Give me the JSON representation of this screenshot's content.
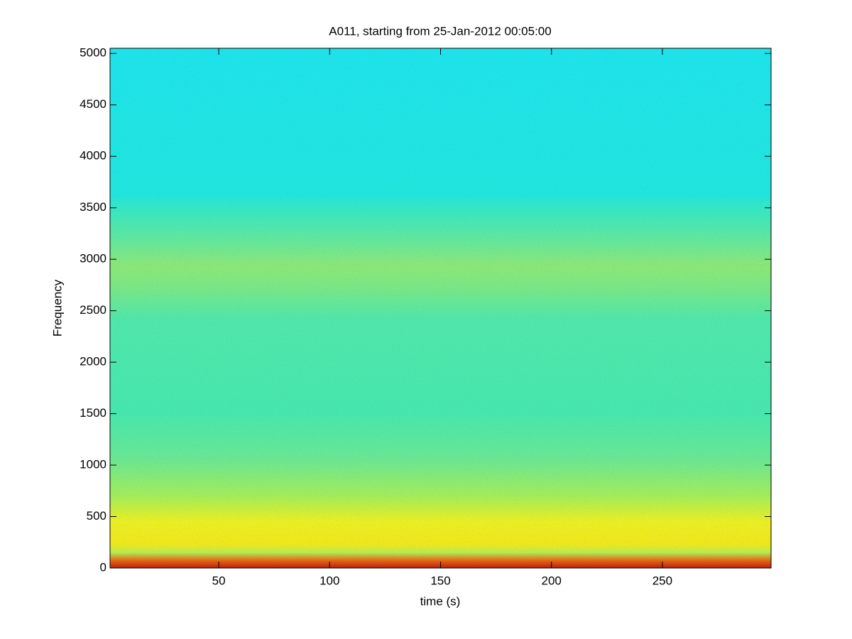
{
  "chart_data": {
    "type": "spectrogram",
    "title": "A011, starting from 25-Jan-2012 00:05:00",
    "x_label": "time (s)",
    "y_label": "Frequency",
    "xlim": [
      1,
      299
    ],
    "ylim": [
      0,
      5050
    ],
    "xticks": [
      50,
      100,
      150,
      200,
      250
    ],
    "yticks": [
      0,
      500,
      1000,
      1500,
      2000,
      2500,
      3000,
      3500,
      4000,
      4500,
      5000
    ]
  }
}
